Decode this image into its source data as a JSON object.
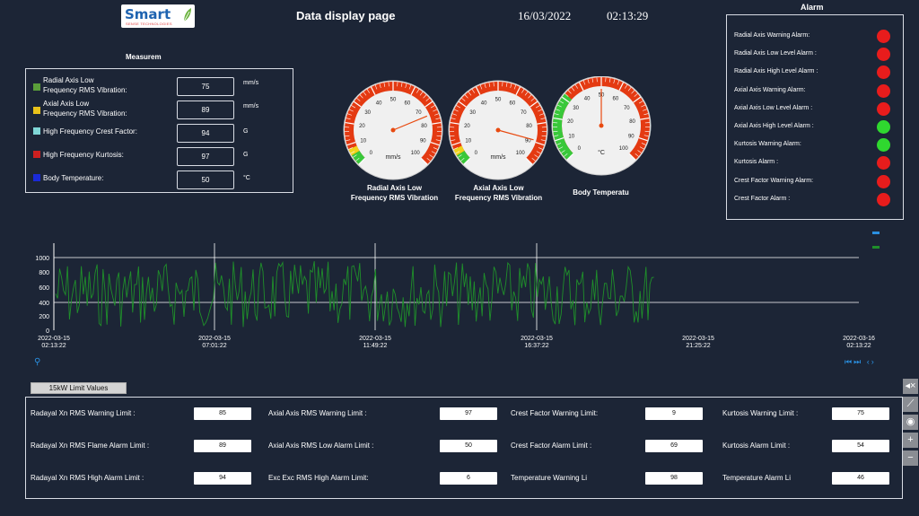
{
  "header": {
    "logo_text": "Smart",
    "logo_subtext": "SENSE TECHNOLOGIES",
    "title": "Data display page",
    "date": "16/03/2022",
    "time": "02:13:29"
  },
  "measurement": {
    "title": "Measurem",
    "rows": [
      {
        "label1": "Radial Axis Low",
        "label2": "Frequency RMS Vibration:",
        "value": "75",
        "unit": "mm/s",
        "color": "#5a9e3a"
      },
      {
        "label1": "Axial Axis Low",
        "label2": "Frequency RMS Vibration:",
        "value": "89",
        "unit": "mm/s",
        "color": "#e8c21a"
      },
      {
        "label1": "High Frequency Crest Factor:",
        "label2": "",
        "value": "94",
        "unit": "G",
        "color": "#7fd6d6"
      },
      {
        "label1": "High Frequency Kurtosis:",
        "label2": "",
        "value": "97",
        "unit": "G",
        "color": "#cc2020"
      },
      {
        "label1": "Body Temperature:",
        "label2": "",
        "value": "50",
        "unit": "°C",
        "color": "#1a2ad8"
      }
    ]
  },
  "gauges": [
    {
      "label1": "Radial Axis Low",
      "label2": "Frequency RMS Vibration",
      "unit": "mm/s",
      "value": 75,
      "ticks": [
        "0",
        "10",
        "20",
        "30",
        "40",
        "50",
        "60",
        "70",
        "80",
        "90",
        "100"
      ]
    },
    {
      "label1": "Axial Axis Low",
      "label2": "Frequency RMS Vibration",
      "unit": "mm/s",
      "value": 89,
      "ticks": [
        "0",
        "10",
        "20",
        "30",
        "40",
        "50",
        "60",
        "70",
        "80",
        "90",
        "100"
      ]
    },
    {
      "label1": "Body Temperatu",
      "label2": "",
      "unit": "°C",
      "value": 50,
      "ticks": [
        "0",
        "10",
        "20",
        "30",
        "40",
        "50",
        "60",
        "70",
        "80",
        "90",
        "100"
      ]
    }
  ],
  "alarm": {
    "title": "Alarm",
    "items": [
      {
        "label": "Radial Axis Warning Alarm:",
        "color": "#e81c1c"
      },
      {
        "label": "Radial Axis Low Level Alarm :",
        "color": "#e81c1c"
      },
      {
        "label": "Radial Axis High Level Alarm :",
        "color": "#e81c1c"
      },
      {
        "label": "Axial Axis Warning Alarm:",
        "color": "#e81c1c"
      },
      {
        "label": "Axial Axis Low Level Alarm :",
        "color": "#e81c1c"
      },
      {
        "label": "Axial Axis High Level Alarm :",
        "color": "#2fd82f"
      },
      {
        "label": "Kurtosis Warning Alarm:",
        "color": "#2fd82f"
      },
      {
        "label": "Kurtosis Alarm :",
        "color": "#e81c1c"
      },
      {
        "label": "Crest Factor Warning Alarm:",
        "color": "#e81c1c"
      },
      {
        "label": "Crest Factor Alarm :",
        "color": "#e81c1c"
      }
    ]
  },
  "trend": {
    "y_ticks": [
      "1000",
      "800",
      "600",
      "400",
      "200",
      "0"
    ],
    "x_ticks": [
      {
        "d": "2022-03-15",
        "t": "02:13:22"
      },
      {
        "d": "2022-03-15",
        "t": "07:01:22"
      },
      {
        "d": "2022-03-15",
        "t": "11:49:22"
      },
      {
        "d": "2022-03-15",
        "t": "16:37:22"
      },
      {
        "d": "2022-03-15",
        "t": "21:25:22"
      },
      {
        "d": "2022-03-16",
        "t": "02:13:22"
      }
    ],
    "line_color": "#1f8f2a"
  },
  "limits": {
    "button_label": "15kW Limit Values",
    "items": [
      {
        "label": "Radayal Xn RMS Warning Limit :",
        "value": "85"
      },
      {
        "label": "Axial Axis RMS Warning Limit :",
        "value": "97"
      },
      {
        "label": "Crest Factor Warning Limit:",
        "value": "9"
      },
      {
        "label": "Kurtosis Warning Limit :",
        "value": "75"
      },
      {
        "label": "Radayal Xn RMS Flame Alarm Limit :",
        "value": "89"
      },
      {
        "label": "Axial Axis RMS Low Alarm Limit :",
        "value": "50"
      },
      {
        "label": "Crest Factor Alarm Limit :",
        "value": "69"
      },
      {
        "label": "Kurtosis Alarm Limit :",
        "value": "54"
      },
      {
        "label": "Radayal Xn RMS High Alarm Limit :",
        "value": "94"
      },
      {
        "label": "Exc Exc RMS High Alarm Limit:",
        "value": "6"
      },
      {
        "label": "Temperature Warning Li",
        "value": "98"
      },
      {
        "label": "Temperature Alarm Li",
        "value": "46"
      }
    ]
  },
  "side_buttons": [
    {
      "name": "mute-icon",
      "glyph": "◂×"
    },
    {
      "name": "tool-icon",
      "glyph": "⟋"
    },
    {
      "name": "eye-icon",
      "glyph": "◉"
    },
    {
      "name": "plus-icon",
      "glyph": "+"
    },
    {
      "name": "minus-icon",
      "glyph": "−"
    }
  ]
}
